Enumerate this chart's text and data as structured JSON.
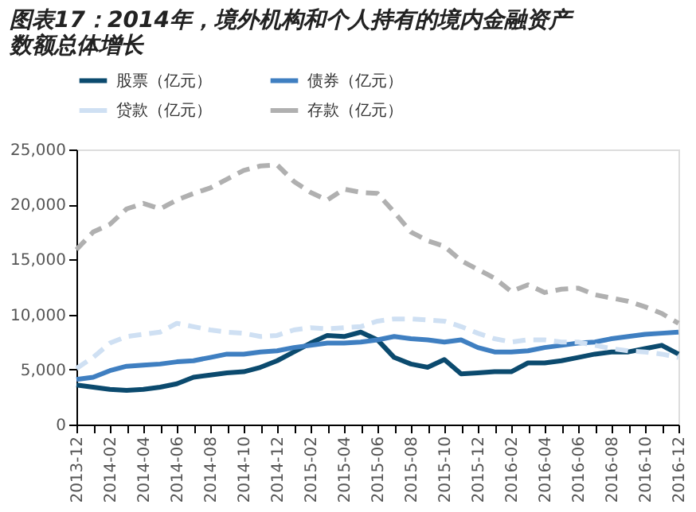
{
  "chart_data": {
    "type": "line",
    "title": [
      "图表17：2014年，境外机构和个人持有的境内金融资产",
      "数额总体增长"
    ],
    "categories": [
      "2013-12",
      null,
      "2014-02",
      null,
      "2014-04",
      null,
      "2014-06",
      null,
      "2014-08",
      null,
      "2014-10",
      null,
      "2014-12",
      null,
      "2015-02",
      null,
      "2015-04",
      null,
      "2015-06",
      null,
      "2015-08",
      null,
      "2015-10",
      null,
      "2015-12",
      null,
      "2016-02",
      null,
      "2016-04",
      null,
      "2016-06",
      null,
      "2016-08",
      null,
      "2016-10",
      null,
      "2016-12"
    ],
    "series": [
      {
        "name": "股票（亿元）",
        "color": "#0b4a6e",
        "line_style": "solid",
        "values": [
          3600,
          3400,
          3200,
          3100,
          3200,
          3400,
          3700,
          4300,
          4500,
          4700,
          4800,
          5200,
          5800,
          6600,
          7400,
          8100,
          8000,
          8400,
          7700,
          6100,
          5500,
          5200,
          5900,
          4600,
          4700,
          4800,
          4800,
          5600,
          5600,
          5800,
          6100,
          6400,
          6600,
          6600,
          6900,
          7200,
          6400
        ]
      },
      {
        "name": "债券（亿元）",
        "color": "#3f7fc1",
        "line_style": "solid",
        "values": [
          4100,
          4300,
          4900,
          5300,
          5400,
          5500,
          5700,
          5800,
          6100,
          6400,
          6400,
          6600,
          6700,
          7000,
          7200,
          7400,
          7400,
          7500,
          7700,
          8000,
          7800,
          7700,
          7500,
          7700,
          7000,
          6600,
          6600,
          6700,
          7000,
          7200,
          7400,
          7500,
          7800,
          8000,
          8200,
          8300,
          8400
        ]
      },
      {
        "name": "贷款（亿元）",
        "color": "#cfe0f3",
        "line_style": "dashed",
        "values": [
          5100,
          6100,
          7400,
          8000,
          8200,
          8400,
          9200,
          8900,
          8600,
          8400,
          8300,
          8000,
          8100,
          8600,
          8800,
          8700,
          8800,
          8900,
          9400,
          9600,
          9600,
          9500,
          9400,
          8900,
          8300,
          7800,
          7500,
          7700,
          7700,
          7500,
          7500,
          7200,
          6900,
          6700,
          6600,
          6400,
          6100
        ]
      },
      {
        "name": "存款（亿元）",
        "color": "#b0b0b0",
        "line_style": "dashed",
        "values": [
          15900,
          17500,
          18200,
          19600,
          20100,
          19600,
          20400,
          21000,
          21500,
          22300,
          23100,
          23500,
          23600,
          22100,
          21100,
          20400,
          21400,
          21100,
          21000,
          19300,
          17500,
          16700,
          16200,
          14900,
          14100,
          13300,
          12100,
          12700,
          12000,
          12300,
          12400,
          11800,
          11500,
          11200,
          10700,
          10100,
          9200
        ]
      }
    ],
    "ylim": [
      0,
      25000
    ],
    "yticks": [
      0,
      {
        "value": 5000,
        "label": "5,000"
      },
      {
        "value": 10000,
        "label": "10,000"
      },
      {
        "value": 15000,
        "label": "15,000"
      },
      {
        "value": 20000,
        "label": "20,000"
      },
      {
        "value": 25000,
        "label": "25,000"
      }
    ],
    "grid": false,
    "legend": "top",
    "marker": "none"
  }
}
